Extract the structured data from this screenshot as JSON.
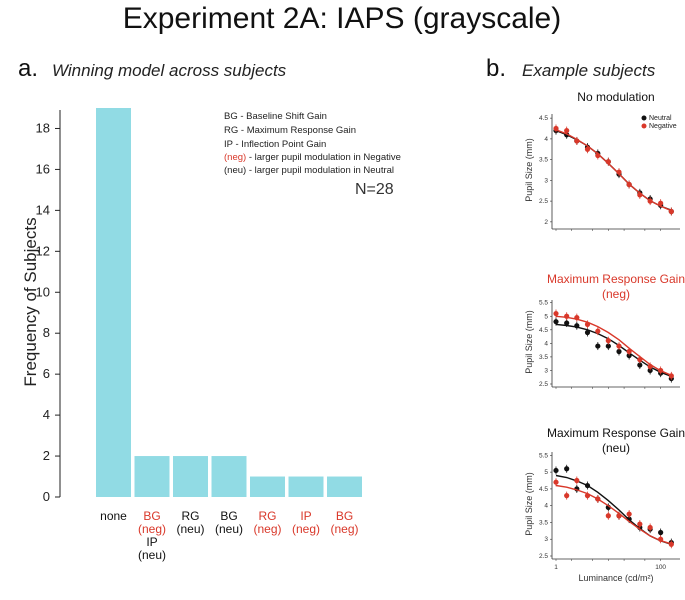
{
  "figure_title": "Experiment 2A: IAPS (grayscale)",
  "panel_a": {
    "letter": "a.",
    "subtitle": "Winning model across subjects"
  },
  "panel_b": {
    "letter": "b.",
    "subtitle": "Example subjects"
  },
  "legend_text": {
    "bg": "BG - Baseline Shift Gain",
    "rg": "RG - Maximum Response Gain",
    "ip": "IP - Inflection Point Gain",
    "neg_tag": "(neg)",
    "neg_rest": " - larger pupil modulation in Negative",
    "neu": "(neu) - larger pupil modulation in Neutral"
  },
  "n_text": "N=28",
  "colors": {
    "bar": "#91dbe4",
    "red": "#d9382a",
    "black": "#111111",
    "grid": "#999999"
  },
  "chart_data": [
    {
      "type": "bar",
      "title": "Winning model across subjects",
      "ylabel": "Frequency of Subjects",
      "xlabel": "",
      "ylim": [
        0,
        19
      ],
      "yticks": [
        0,
        2,
        4,
        6,
        8,
        10,
        12,
        14,
        16,
        18
      ],
      "categories": [
        {
          "lines": [
            {
              "t": "none",
              "c": "black"
            }
          ],
          "value": 19
        },
        {
          "lines": [
            {
              "t": "BG",
              "c": "red"
            },
            {
              "t": "(neg)",
              "c": "red"
            },
            {
              "t": "IP",
              "c": "black"
            },
            {
              "t": "(neu)",
              "c": "black"
            }
          ],
          "value": 2
        },
        {
          "lines": [
            {
              "t": "RG",
              "c": "black"
            },
            {
              "t": "(neu)",
              "c": "black"
            }
          ],
          "value": 2
        },
        {
          "lines": [
            {
              "t": "BG",
              "c": "black"
            },
            {
              "t": "(neu)",
              "c": "black"
            }
          ],
          "value": 2
        },
        {
          "lines": [
            {
              "t": "RG",
              "c": "red"
            },
            {
              "t": "(neg)",
              "c": "red"
            }
          ],
          "value": 1
        },
        {
          "lines": [
            {
              "t": "IP",
              "c": "red"
            },
            {
              "t": "(neg)",
              "c": "red"
            }
          ],
          "value": 1
        },
        {
          "lines": [
            {
              "t": "BG",
              "c": "red"
            },
            {
              "t": "(neg)",
              "c": "red"
            }
          ],
          "value": 1
        }
      ]
    },
    {
      "type": "scatter",
      "title_lines": [
        {
          "t": "No modulation",
          "c": "black"
        }
      ],
      "ylabel": "Pupil Size (mm)",
      "ylim": [
        1.9,
        4.6
      ],
      "yticks": [
        "2",
        "2.5",
        "3",
        "3.5",
        "4",
        "4.5"
      ],
      "legend": [
        "Neutral",
        "Negative"
      ],
      "xlabel": "",
      "series": [
        {
          "name": "Neutral",
          "color": "black",
          "x": [
            1,
            1.6,
            2.5,
            4,
            6.3,
            10,
            16,
            25,
            40,
            63,
            100,
            160
          ],
          "y": [
            4.2,
            4.1,
            3.95,
            3.8,
            3.65,
            3.45,
            3.15,
            2.9,
            2.7,
            2.55,
            2.4,
            2.25
          ],
          "fit": [
            4.2,
            4.1,
            3.98,
            3.83,
            3.64,
            3.41,
            3.16,
            2.91,
            2.69,
            2.51,
            2.38,
            2.28
          ]
        },
        {
          "name": "Negative",
          "color": "red",
          "x": [
            1,
            1.6,
            2.5,
            4,
            6.3,
            10,
            16,
            25,
            40,
            63,
            100,
            160
          ],
          "y": [
            4.25,
            4.2,
            3.95,
            3.75,
            3.6,
            3.45,
            3.2,
            2.9,
            2.65,
            2.5,
            2.45,
            2.25
          ],
          "fit": [
            4.22,
            4.12,
            3.99,
            3.83,
            3.64,
            3.41,
            3.16,
            2.91,
            2.69,
            2.51,
            2.38,
            2.27
          ]
        }
      ]
    },
    {
      "type": "scatter",
      "title_lines": [
        {
          "t": "Maximum Response Gain",
          "c": "red"
        },
        {
          "t": "(neg)",
          "c": "red"
        }
      ],
      "ylabel": "Pupil Size (mm)",
      "ylim": [
        2.5,
        5.6
      ],
      "yticks": [
        "2.5",
        "3",
        "3.5",
        "4",
        "4.5",
        "5",
        "5.5"
      ],
      "xlabel": "",
      "series": [
        {
          "name": "Neutral",
          "color": "black",
          "x": [
            1,
            1.6,
            2.5,
            4,
            6.3,
            10,
            16,
            25,
            40,
            63,
            100,
            160
          ],
          "y": [
            4.8,
            4.75,
            4.65,
            4.4,
            3.9,
            3.9,
            3.7,
            3.55,
            3.2,
            3.0,
            2.9,
            2.7
          ],
          "fit": [
            4.7,
            4.66,
            4.6,
            4.5,
            4.36,
            4.17,
            3.92,
            3.65,
            3.38,
            3.13,
            2.93,
            2.78
          ]
        },
        {
          "name": "Negative",
          "color": "red",
          "x": [
            1,
            1.6,
            2.5,
            4,
            6.3,
            10,
            16,
            25,
            40,
            63,
            100,
            160
          ],
          "y": [
            5.1,
            5.0,
            4.95,
            4.7,
            4.45,
            4.1,
            3.9,
            3.7,
            3.4,
            3.15,
            3.0,
            2.8
          ],
          "fit": [
            5.0,
            4.96,
            4.89,
            4.78,
            4.62,
            4.4,
            4.13,
            3.82,
            3.51,
            3.22,
            2.99,
            2.82
          ]
        }
      ]
    },
    {
      "type": "scatter",
      "title_lines": [
        {
          "t": "Maximum Response Gain",
          "c": "black"
        },
        {
          "t": "(neu)",
          "c": "black"
        }
      ],
      "ylabel": "Pupil Size (mm)",
      "ylim": [
        2.5,
        5.6
      ],
      "yticks": [
        "2.5",
        "3",
        "3.5",
        "4",
        "4.5",
        "5",
        "5.5"
      ],
      "xlabel": "Luminance (cd/m²)",
      "xticks": [
        "1",
        "100"
      ],
      "series": [
        {
          "name": "Neutral",
          "color": "black",
          "x": [
            1,
            1.6,
            2.5,
            4,
            6.3,
            10,
            16,
            25,
            40,
            63,
            100,
            160
          ],
          "y": [
            5.05,
            5.1,
            4.5,
            4.6,
            4.2,
            3.95,
            3.7,
            3.6,
            3.35,
            3.3,
            3.2,
            2.9
          ],
          "fit": [
            4.9,
            4.84,
            4.74,
            4.6,
            4.4,
            4.15,
            3.87,
            3.58,
            3.32,
            3.1,
            2.95,
            2.85
          ]
        },
        {
          "name": "Negative",
          "color": "red",
          "x": [
            1,
            1.6,
            2.5,
            4,
            6.3,
            10,
            16,
            25,
            40,
            63,
            100,
            160
          ],
          "y": [
            4.7,
            4.3,
            4.75,
            4.3,
            4.2,
            3.7,
            3.7,
            3.75,
            3.45,
            3.35,
            3.0,
            2.85
          ],
          "fit": [
            4.6,
            4.55,
            4.47,
            4.36,
            4.2,
            4.0,
            3.77,
            3.53,
            3.3,
            3.1,
            2.96,
            2.86
          ]
        }
      ]
    }
  ]
}
